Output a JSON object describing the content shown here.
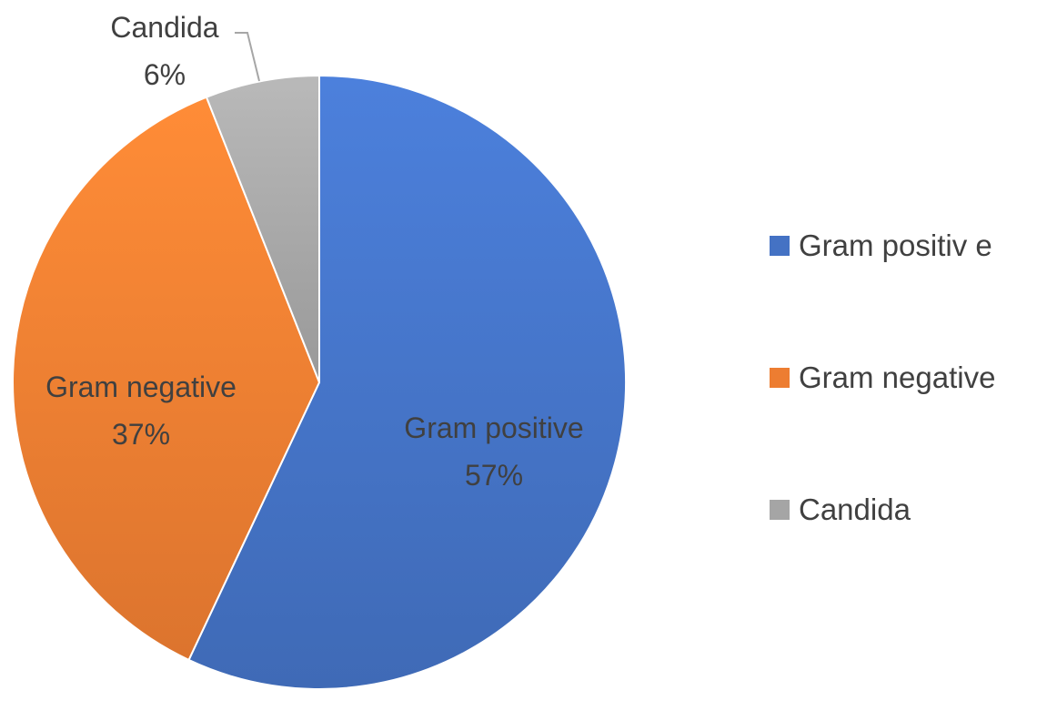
{
  "chart_data": {
    "type": "pie",
    "title": "",
    "series": [
      {
        "label": "Gram positive",
        "value": 57,
        "value_label": "57%",
        "color": "#4472C4"
      },
      {
        "label": "Gram negative",
        "value": 37,
        "value_label": "37%",
        "color": "#ED7D31"
      },
      {
        "label": "Candida",
        "value": 6,
        "value_label": "6%",
        "color": "#A5A5A5"
      }
    ],
    "legend": {
      "placement": "right",
      "entries": [
        "Gram positiv e",
        "Gram negative",
        "Candida"
      ]
    }
  }
}
